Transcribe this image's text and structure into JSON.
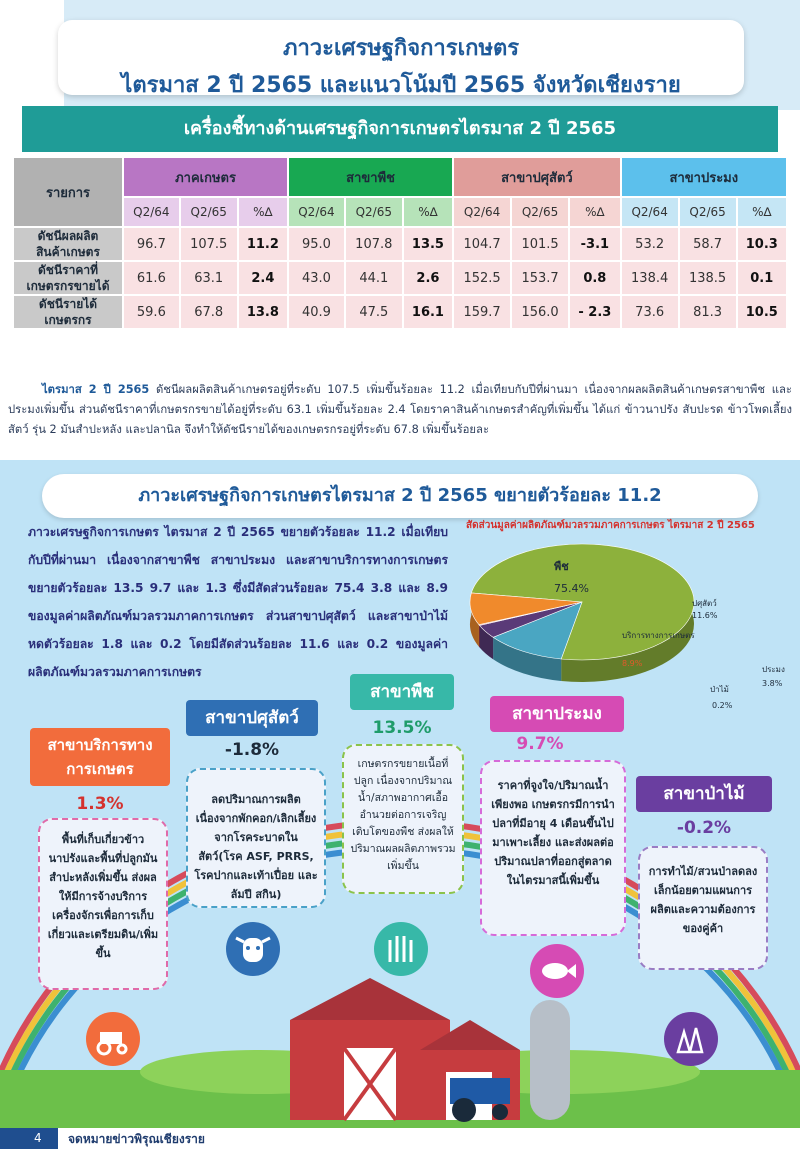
{
  "header": {
    "title_line1": "ภาวะเศรษฐกิจการเกษตร",
    "title_line2": "ไตรมาส 2 ปี 2565 และแนวโน้มปี 2565 จังหวัดเชียงราย"
  },
  "indicators": {
    "heading": "เครื่องชี้ทางด้านเศรษฐกิจการเกษตรไตรมาส 2 ปี 2565",
    "col_label": "รายการ",
    "sectors": [
      "ภาคเกษตร",
      "สาขาพืช",
      "สาขาปศุสัตว์",
      "สาขาประมง"
    ],
    "sub_headers": [
      "Q2/64",
      "Q2/65",
      "%∆"
    ],
    "rows": [
      {
        "label1": "ดัชนีผลผลิต",
        "label2": "สินค้าเกษตร",
        "values": [
          "96.7",
          "107.5",
          "11.2",
          "95.0",
          "107.8",
          "13.5",
          "104.7",
          "101.5",
          "-3.1",
          "53.2",
          "58.7",
          "10.3"
        ]
      },
      {
        "label1": "ดัชนีราคาที่",
        "label2": "เกษตรกรขายได้",
        "values": [
          "61.6",
          "63.1",
          "2.4",
          "43.0",
          "44.1",
          "2.6",
          "152.5",
          "153.7",
          "0.8",
          "138.4",
          "138.5",
          "0.1"
        ]
      },
      {
        "label1": "ดัชนีรายได้",
        "label2": "เกษตรกร",
        "values": [
          "59.6",
          "67.8",
          "13.8",
          "40.9",
          "47.5",
          "16.1",
          "159.7",
          "156.0",
          "- 2.3",
          "73.6",
          "81.3",
          "10.5"
        ]
      }
    ]
  },
  "summary": {
    "lead": "ไตรมาส 2 ปี 2565",
    "text": " ดัชนีผลผลิตสินค้าเกษตรอยู่ที่ระดับ 107.5 เพิ่มขึ้นร้อยละ 11.2 เมื่อเทียบกับปีที่ผ่านมา เนื่องจากผลผลิตสินค้าเกษตรสาขาพืช และประมงเพิ่มขึ้น ส่วนดัชนีราคาที่เกษตรกรขายได้อยู่ที่ระดับ 63.1 เพิ่มขึ้นร้อยละ 2.4 โดยราคาสินค้าเกษตรสำคัญที่เพิ่มขึ้น ได้แก่ ข้าวนาปรัง สับปะรด ข้าวโพดเลี้ยงสัตว์ รุ่น 2 มันสำปะหลัง และปลานิล จึงทำให้ดัชนีรายได้ของเกษตรกรอยู่ที่ระดับ 67.8 เพิ่มขึ้นร้อยละ"
  },
  "economy": {
    "heading": "ภาวะเศรษฐกิจการเกษตรไตรมาส 2 ปี 2565  ขยายตัวร้อยละ 11.2",
    "paragraph": "ภาวะเศรษฐกิจการเกษตร ไตรมาส 2 ปี 2565 ขยายตัวร้อยละ 11.2 เมื่อเทียบกับปีที่ผ่านมา เนื่องจากสาขาพืช สาขาประมง และสาขาบริการทางการเกษตร ขยายตัวร้อยละ 13.5 9.7 และ 1.3 ซึ่งมีสัดส่วนร้อยละ 75.4 3.8 และ 8.9 ของมูลค่าผลิตภัณฑ์มวลรวมภาคการเกษตร ส่วนสาขาปศุสัตว์ และสาขาป่าไม้ หดตัวร้อยละ 1.8 และ 0.2 โดยมีสัดส่วนร้อยละ 11.6 และ 0.2 ของมูลค่าผลิตภัณฑ์มวลรวมภาคการเกษตร"
  },
  "chart_data": {
    "type": "pie",
    "title": "สัดส่วนมูลค่าผลิตภัณฑ์มวลรวมภาคการเกษตร ไตรมาส 2 ปี 2565",
    "slices": [
      {
        "label": "พืช",
        "value": 75.4,
        "display": "75.4%",
        "color": "#8db13c"
      },
      {
        "label": "ปศุสัตว์",
        "value": 11.6,
        "display": "11.6%",
        "color": "#4aa6c2"
      },
      {
        "label": "ประมง",
        "value": 3.8,
        "display": "3.8%",
        "color": "#5a3a78"
      },
      {
        "label": "ป่าไม้",
        "value": 0.2,
        "display": "0.2%",
        "color": "#d4322e"
      },
      {
        "label": "บริการทางการเกษตร",
        "value": 8.9,
        "display": "8.9%",
        "color": "#f08a2c"
      }
    ]
  },
  "sectors": {
    "service": {
      "tag": "สาขาบริการทางการเกษตร",
      "tag1": "สาขาบริการทาง",
      "tag2": "การเกษตร",
      "pct": "1.3%",
      "desc": "พื้นที่เก็บเกี่ยวข้าวนาปรังและพื้นที่ปลูกมันสำปะหลังเพิ่มขึ้น ส่งผลให้มีการจ้างบริการเครื่องจักรเพื่อการเก็บเกี่ยวและเตรียมดิน/เพิ่มขึ้น",
      "color": "#f26c3c"
    },
    "livestock": {
      "tag": "สาขาปศุสัตว์",
      "pct": "-1.8%",
      "desc": "ลดปริมาณการผลิตเนื่องจากพักคอก/เลิกเลี้ยงจากโรคระบาดในสัตว์(โรค ASF, PRRS, โรคปากและเท้าเปื่อย และลัมปี สกิน)",
      "color": "#2f6fb4"
    },
    "crop": {
      "tag": "สาขาพืช",
      "pct": "13.5%",
      "desc": "เกษตรกรขยายเนื้อที่ปลูก เนื่องจากปริมาณน้ำ/สภาพอากาศเอื้ออำนวยต่อการเจริญเติบโตของพืช ส่งผลให้ปริมาณผลผลิตภาพรวมเพิ่มขึ้น",
      "color": "#37b8a8"
    },
    "fishery": {
      "tag": "สาขาประมง",
      "pct": "9.7%",
      "desc": "ราคาที่จูงใจ/ปริมาณน้ำเพียงพอ เกษตรกรมีการนำปลาที่มีอายุ 4 เดือนขึ้นไปมาเพาะเลี้ยง และส่งผลต่อปริมาณปลาที่ออกสู่ตลาดในไตรมาสนี้เพิ่มขึ้น",
      "color": "#d64bb4"
    },
    "forest": {
      "tag": "สาขาป่าไม้",
      "pct": "-0.2%",
      "desc": "การทำไม้/สวนป่าลดลงเล็กน้อยตามแผนการผลิตและความต้องการของคู่ค้า",
      "color": "#6a3ea0"
    }
  },
  "footer": {
    "page": "4",
    "name": "จดหมายข่าวพิรุณเชียงราย"
  }
}
